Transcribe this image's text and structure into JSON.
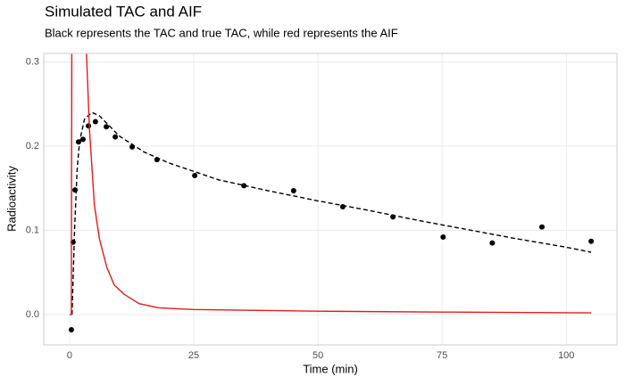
{
  "chart_data": {
    "type": "line",
    "title": "Simulated TAC and AIF",
    "subtitle": "Black represents the TAC and true TAC, while red represents the AIF",
    "x_label": "Time (min)",
    "y_label": "Radioactivity",
    "xlim": [
      -5.2,
      110.2
    ],
    "ylim": [
      -0.036,
      0.31
    ],
    "xticks": [
      0,
      25,
      50,
      75,
      100
    ],
    "yticks": [
      {
        "value": 0,
        "label": "0.0"
      },
      {
        "value": 0.1,
        "label": "0.1"
      },
      {
        "value": 0.2,
        "label": "0.2"
      },
      {
        "value": 0.3,
        "label": "0.3"
      }
    ],
    "grid": true,
    "series": [
      {
        "mode": "points",
        "color": "#000000",
        "x": [
          0.36,
          0.7,
          1.1,
          1.8,
          2.7,
          3.8,
          5.2,
          7.4,
          9.2,
          12.6,
          17.6,
          25.2,
          35.1,
          45.1,
          55,
          65.1,
          75.2,
          85.1,
          95.1,
          105
        ],
        "values": [
          -0.018,
          0.086,
          0.148,
          0.205,
          0.208,
          0.224,
          0.229,
          0.223,
          0.211,
          0.199,
          0.184,
          0.165,
          0.153,
          0.147,
          0.128,
          0.116,
          0.092,
          0.085,
          0.104,
          0.087
        ]
      },
      {
        "mode": "line",
        "dashed": true,
        "color": "#000000",
        "x": [
          0.5,
          1,
          1.5,
          2,
          3,
          4.5,
          6,
          8,
          10,
          15,
          20,
          30,
          40,
          50,
          60,
          70,
          80,
          90,
          100,
          105
        ],
        "values": [
          0,
          0.1,
          0.17,
          0.205,
          0.232,
          0.24,
          0.236,
          0.224,
          0.212,
          0.193,
          0.18,
          0.16,
          0.147,
          0.135,
          0.124,
          0.112,
          0.101,
          0.09,
          0.08,
          0.074
        ]
      },
      {
        "mode": "line",
        "dashed": false,
        "color": "#e41a1c",
        "x": [
          0,
          0.36,
          0.5,
          3.2,
          3.4,
          4,
          5,
          6,
          7.5,
          9,
          11,
          14,
          18,
          25,
          50,
          75,
          105
        ],
        "values": [
          0,
          0,
          0.5,
          0.34,
          0.31,
          0.22,
          0.13,
          0.09,
          0.056,
          0.035,
          0.024,
          0.013,
          0.008,
          0.006,
          0.004,
          0.003,
          0.002
        ]
      }
    ]
  }
}
